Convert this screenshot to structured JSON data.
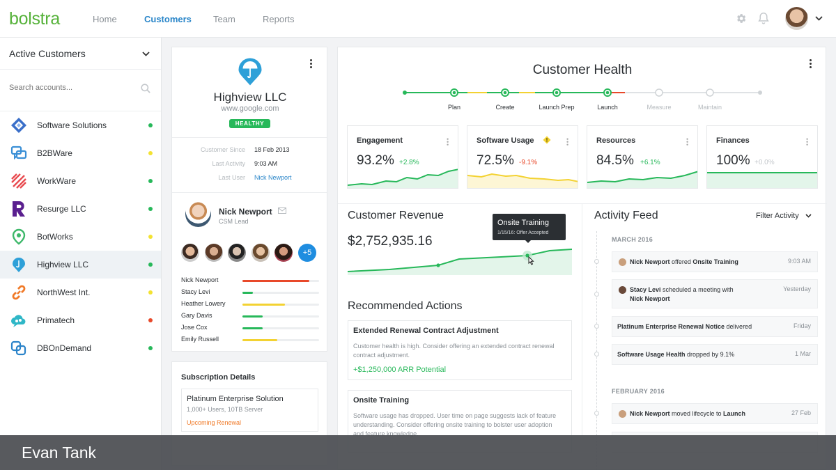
{
  "app": {
    "logo": "bolstra"
  },
  "nav": [
    {
      "label": "Home",
      "active": false
    },
    {
      "label": "Customers",
      "active": true
    },
    {
      "label": "Team",
      "active": false
    },
    {
      "label": "Reports",
      "active": false
    }
  ],
  "header_icons": [
    "gear-icon",
    "bell-icon",
    "avatar",
    "chevron-down-icon"
  ],
  "sidebar": {
    "title": "Active Customers",
    "search_placeholder": "Search accounts...",
    "accounts": [
      {
        "name": "Software Solutions",
        "status": "#27b85a",
        "icon": "diamond-logo",
        "selected": false
      },
      {
        "name": "B2BWare",
        "status": "#f3e232",
        "icon": "chat-logo",
        "selected": false
      },
      {
        "name": "WorkWare",
        "status": "#27b85a",
        "icon": "stripes-logo",
        "selected": false
      },
      {
        "name": "Resurge LLC",
        "status": "#27b85a",
        "icon": "r-logo",
        "selected": false
      },
      {
        "name": "BotWorks",
        "status": "#f3e232",
        "icon": "pin-logo",
        "selected": false
      },
      {
        "name": "Highview LLC",
        "status": "#27b85a",
        "icon": "umbrella-logo",
        "selected": true
      },
      {
        "name": "NorthWest Int.",
        "status": "#f3e232",
        "icon": "link-logo",
        "selected": false
      },
      {
        "name": "Primatech",
        "status": "#e8492a",
        "icon": "cloud-logo",
        "selected": false
      },
      {
        "name": "DBOnDemand",
        "status": "#27b85a",
        "icon": "squares-logo",
        "selected": false
      }
    ]
  },
  "company": {
    "name": "Highview LLC",
    "url": "www.google.com",
    "badge": "HEALTHY",
    "meta": [
      {
        "label": "Customer Since",
        "value": "18 Feb 2013",
        "link": false
      },
      {
        "label": "Last Activity",
        "value": "9:03 AM",
        "link": false
      },
      {
        "label": "Last User",
        "value": "Nick Newport",
        "link": true
      }
    ],
    "lead": {
      "name": "Nick Newport",
      "role": "CSM Lead"
    },
    "more_members": "+5",
    "team": [
      {
        "name": "Nick Newport",
        "level": 0.87,
        "color": "#e8492a"
      },
      {
        "name": "Stacy Levi",
        "level": 0.14,
        "color": "#27b85a"
      },
      {
        "name": "Heather Lowery",
        "level": 0.55,
        "color": "#f3d232"
      },
      {
        "name": "Gary Davis",
        "level": 0.26,
        "color": "#27b85a"
      },
      {
        "name": "Jose Cox",
        "level": 0.26,
        "color": "#27b85a"
      },
      {
        "name": "Emily Russell",
        "level": 0.45,
        "color": "#f3d232"
      }
    ]
  },
  "subscription": {
    "title": "Subscription Details",
    "plan": "Platinum Enterprise Solution",
    "details": "1,000+ Users, 10TB Server",
    "renewal": "Upcoming Renewal"
  },
  "health": {
    "title": "Customer Health",
    "stages": [
      {
        "label": "Plan",
        "done": true
      },
      {
        "label": "Create",
        "done": true
      },
      {
        "label": "Launch Prep",
        "done": true
      },
      {
        "label": "Launch",
        "done": true
      },
      {
        "label": "Measure",
        "done": false
      },
      {
        "label": "Maintain",
        "done": false
      }
    ],
    "metrics": [
      {
        "title": "Engagement",
        "value": "93.2%",
        "delta": "+2.8%",
        "delta_color": "#27b85a",
        "warn": false
      },
      {
        "title": "Software Usage",
        "value": "72.5%",
        "delta": "-9.1%",
        "delta_color": "#e8492a",
        "warn": true
      },
      {
        "title": "Resources",
        "value": "84.5%",
        "delta": "+6.1%",
        "delta_color": "#27b85a",
        "warn": false
      },
      {
        "title": "Finances",
        "value": "100%",
        "delta": "+0.0%",
        "delta_color": "#c4c8cc",
        "warn": false
      }
    ]
  },
  "revenue": {
    "title": "Customer Revenue",
    "value": "$2,752,935.16",
    "tooltip_title": "Onsite Training",
    "tooltip_sub": "1/15/16: Offer Accepted"
  },
  "recommended": {
    "title": "Recommended Actions",
    "items": [
      {
        "title": "Extended Renewal Contract Adjustment",
        "body": "Customer health is high. Consider offering an extended contract renewal contract adjustment.",
        "potential": "+$1,250,000 ARR Potential"
      },
      {
        "title": "Onsite Training",
        "body": "Software usage has dropped. User time on page suggests lack of feature understanding. Consider offering onsite training to bolster user adoption and feature knowledge.",
        "potential": ""
      }
    ]
  },
  "activity": {
    "title": "Activity Feed",
    "filter": "Filter Activity",
    "months": [
      "MARCH 2016",
      "FEBRUARY 2016"
    ],
    "items": [
      {
        "pre": "Nick Newport",
        "mid": " offered ",
        "post": "Onsite Training",
        "time": "9:03 AM"
      },
      {
        "pre": "Stacy Levi",
        "mid": " scheduled a meeting with ",
        "post": "Nick Newport",
        "time": "Yesterday"
      },
      {
        "pre": "Platinum Enterprise Renewal Notice",
        "mid": " delivered",
        "post": "",
        "time": "Friday"
      },
      {
        "pre": "Software Usage Health",
        "mid": " dropped by 9.1%",
        "post": "",
        "time": "1 Mar"
      },
      {
        "pre": "Nick Newport",
        "mid": " moved lifecycle to ",
        "post": "Launch",
        "time": "27 Feb"
      }
    ]
  },
  "caption": "Evan Tank"
}
